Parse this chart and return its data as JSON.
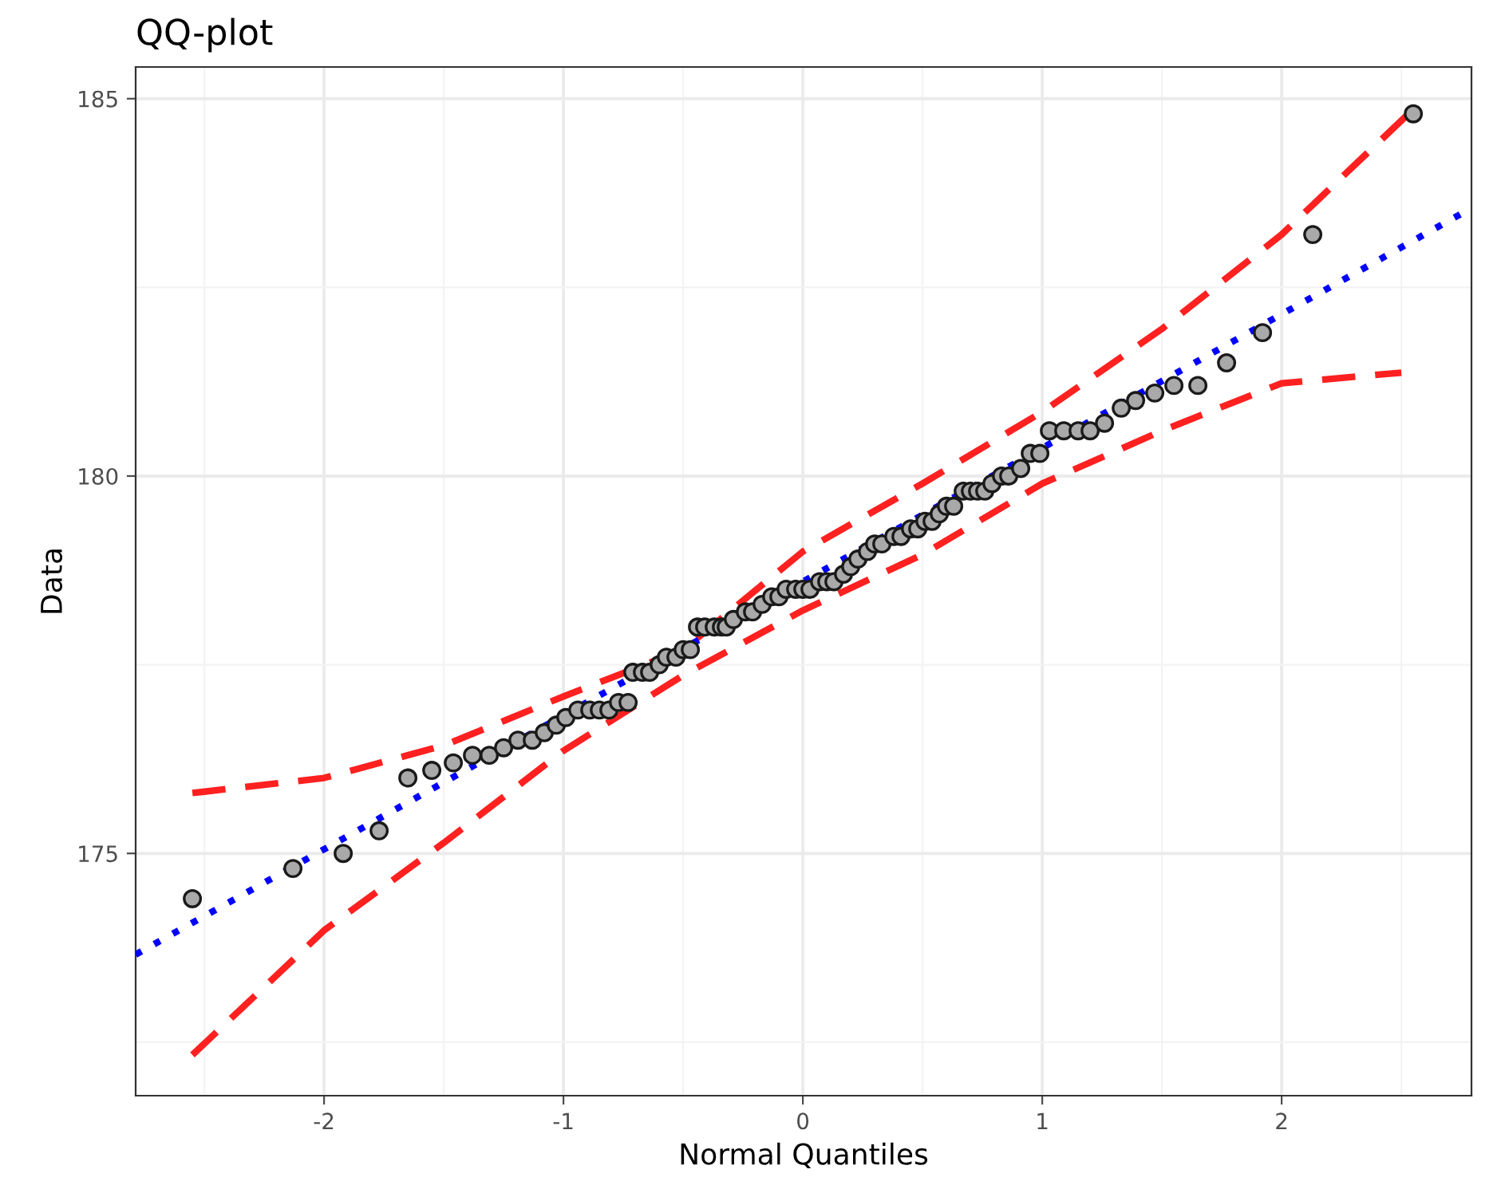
{
  "chart_data": {
    "type": "scatter",
    "title": "QQ-plot",
    "xlabel": "Normal Quantiles",
    "ylabel": "Data",
    "xlim": [
      -2.787,
      2.793
    ],
    "ylim": [
      171.79,
      185.42
    ],
    "xticks": [
      -2,
      -1,
      0,
      1,
      2
    ],
    "yticks": [
      175,
      180,
      185
    ],
    "grid": true,
    "series": [
      {
        "type": "line",
        "color": "#ff2020",
        "line_style": "dashed",
        "marker": "none",
        "x": [
          -2.55,
          -2.0,
          -1.5,
          -1.0,
          -0.5,
          0.0,
          0.5,
          1.0,
          1.5,
          2.0,
          2.53
        ],
        "values": [
          175.8,
          176.0,
          176.43,
          177.08,
          177.7,
          179.0,
          179.9,
          180.85,
          181.95,
          183.2,
          184.8
        ]
      },
      {
        "type": "line",
        "color": "#ff2020",
        "line_style": "dashed",
        "marker": "none",
        "x": [
          -2.55,
          -2.0,
          -1.5,
          -1.0,
          -0.5,
          0.0,
          0.5,
          1.0,
          1.5,
          2.0,
          2.5
        ],
        "values": [
          172.33,
          173.98,
          175.14,
          176.36,
          177.36,
          178.22,
          178.96,
          179.9,
          180.6,
          181.23,
          181.37
        ]
      },
      {
        "type": "line",
        "color": "#0000ff",
        "line_style": "dotted",
        "marker": "none",
        "x": [
          -2.787,
          2.793
        ],
        "values": [
          173.66,
          183.55
        ]
      },
      {
        "color": "#a9a9a9",
        "marker": "circle",
        "x": [
          -2.55,
          -2.13,
          -1.92,
          -1.77,
          -1.65,
          -1.55,
          -1.46,
          -1.38,
          -1.31,
          -1.25,
          -1.19,
          -1.13,
          -1.08,
          -1.03,
          -0.99,
          -0.94,
          -0.89,
          -0.85,
          -0.81,
          -0.77,
          -0.73,
          -0.71,
          -0.67,
          -0.64,
          -0.6,
          -0.57,
          -0.53,
          -0.5,
          -0.47,
          -0.44,
          -0.41,
          -0.37,
          -0.34,
          -0.32,
          -0.29,
          -0.24,
          -0.21,
          -0.17,
          -0.13,
          -0.1,
          -0.07,
          -0.03,
          0.0,
          0.03,
          0.07,
          0.1,
          0.13,
          0.17,
          0.2,
          0.23,
          0.27,
          0.3,
          0.33,
          0.38,
          0.41,
          0.45,
          0.48,
          0.51,
          0.54,
          0.57,
          0.6,
          0.63,
          0.67,
          0.7,
          0.73,
          0.76,
          0.79,
          0.83,
          0.86,
          0.91,
          0.95,
          0.99,
          1.03,
          1.09,
          1.15,
          1.2,
          1.26,
          1.33,
          1.39,
          1.47,
          1.55,
          1.65,
          1.77,
          1.92,
          2.13,
          2.55
        ],
        "values": [
          174.4,
          174.8,
          175.0,
          175.3,
          176.0,
          176.1,
          176.2,
          176.3,
          176.3,
          176.4,
          176.5,
          176.5,
          176.6,
          176.7,
          176.8,
          176.9,
          176.9,
          176.9,
          176.9,
          177.0,
          177.0,
          177.4,
          177.4,
          177.4,
          177.5,
          177.6,
          177.6,
          177.7,
          177.7,
          178.0,
          178.0,
          178.0,
          178.0,
          178.0,
          178.1,
          178.2,
          178.2,
          178.3,
          178.4,
          178.4,
          178.5,
          178.5,
          178.5,
          178.5,
          178.6,
          178.6,
          178.6,
          178.7,
          178.8,
          178.9,
          179.0,
          179.1,
          179.1,
          179.2,
          179.2,
          179.3,
          179.3,
          179.4,
          179.4,
          179.5,
          179.6,
          179.6,
          179.8,
          179.8,
          179.8,
          179.8,
          179.9,
          180.0,
          180.0,
          180.1,
          180.3,
          180.3,
          180.6,
          180.6,
          180.6,
          180.6,
          180.7,
          180.9,
          181.0,
          181.1,
          181.2,
          181.2,
          181.5,
          181.9,
          183.2,
          184.8
        ]
      }
    ]
  }
}
